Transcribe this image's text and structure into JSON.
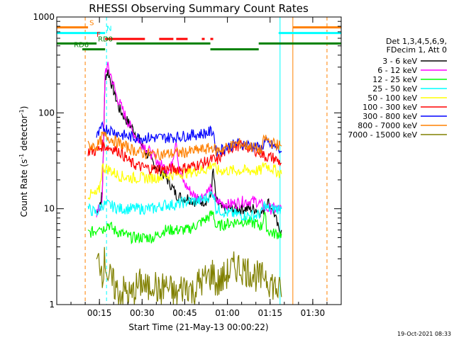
{
  "chart_data": {
    "type": "line",
    "title": "RHESSI Observing Summary Count Rates",
    "xlabel": "Start Time (21-May-13 00:00:22)",
    "ylabel": "Count Rate (s",
    "ylabel_sup": "-1",
    "ylabel_tail": " detector",
    "ylabel_sup2": "-1",
    "ylabel_close": ")",
    "yscale": "log",
    "xlim": [
      0,
      100
    ],
    "ylim": [
      1,
      1000
    ],
    "x_ticks": [
      {
        "t": 15,
        "label": "00:15"
      },
      {
        "t": 30,
        "label": "00:30"
      },
      {
        "t": 45,
        "label": "00:45"
      },
      {
        "t": 60,
        "label": "01:00"
      },
      {
        "t": 75,
        "label": "01:15"
      },
      {
        "t": 90,
        "label": "01:30"
      }
    ],
    "y_ticks": [
      {
        "v": 1,
        "label": "1"
      },
      {
        "v": 10,
        "label": "10"
      },
      {
        "v": 100,
        "label": "100"
      },
      {
        "v": 1000,
        "label": "1000"
      }
    ],
    "legend_header": [
      "Det 1,3,4,5,6,9,",
      "FDecim 1, Att 0"
    ],
    "legend_placement": "right",
    "timestamp": "19-Oct-2021 08:33",
    "series": [
      {
        "name": "3 - 6 keV",
        "color": "#000000",
        "points": [
          [
            14,
            9
          ],
          [
            15,
            11
          ],
          [
            16,
            14
          ],
          [
            17,
            240
          ],
          [
            18,
            270
          ],
          [
            20,
            170
          ],
          [
            22,
            110
          ],
          [
            25,
            80
          ],
          [
            28,
            60
          ],
          [
            31,
            40
          ],
          [
            34,
            30
          ],
          [
            36,
            26
          ],
          [
            38,
            22
          ],
          [
            40,
            18
          ],
          [
            42,
            14
          ],
          [
            44,
            13
          ],
          [
            46,
            13
          ],
          [
            48,
            12
          ],
          [
            50,
            12
          ],
          [
            52,
            12
          ],
          [
            54,
            13
          ],
          [
            55,
            25
          ],
          [
            56,
            12
          ],
          [
            58,
            10
          ],
          [
            62,
            10
          ],
          [
            66,
            10
          ],
          [
            70,
            10
          ],
          [
            72,
            9
          ],
          [
            73,
            10
          ],
          [
            74,
            12
          ],
          [
            76,
            10
          ],
          [
            78,
            6
          ],
          [
            79,
            6
          ]
        ]
      },
      {
        "name": "6 - 12 keV",
        "color": "#ff00ff",
        "points": [
          [
            14,
            9
          ],
          [
            15,
            10
          ],
          [
            16,
            12
          ],
          [
            17,
            280
          ],
          [
            18,
            300
          ],
          [
            19,
            250
          ],
          [
            21,
            150
          ],
          [
            23,
            110
          ],
          [
            26,
            70
          ],
          [
            28,
            55
          ],
          [
            31,
            45
          ],
          [
            34,
            35
          ],
          [
            37,
            28
          ],
          [
            40,
            25
          ],
          [
            42,
            55
          ],
          [
            43,
            25
          ],
          [
            45,
            18
          ],
          [
            48,
            14
          ],
          [
            50,
            13
          ],
          [
            52,
            14
          ],
          [
            54,
            16
          ],
          [
            56,
            12
          ],
          [
            60,
            11
          ],
          [
            66,
            12
          ],
          [
            70,
            12
          ],
          [
            72,
            11
          ],
          [
            74,
            10
          ],
          [
            76,
            10
          ],
          [
            79,
            10
          ]
        ]
      },
      {
        "name": "12 - 25 keV",
        "color": "#00ff00",
        "points": [
          [
            11,
            5.5
          ],
          [
            14,
            6
          ],
          [
            15,
            7
          ],
          [
            16,
            6
          ],
          [
            18,
            7
          ],
          [
            20,
            6
          ],
          [
            23,
            5.5
          ],
          [
            26,
            5
          ],
          [
            30,
            5
          ],
          [
            34,
            5
          ],
          [
            38,
            6
          ],
          [
            42,
            6
          ],
          [
            46,
            6
          ],
          [
            50,
            7
          ],
          [
            53,
            8
          ],
          [
            55,
            9
          ],
          [
            56,
            6.5
          ],
          [
            60,
            7
          ],
          [
            65,
            7.5
          ],
          [
            70,
            7
          ],
          [
            72,
            6.5
          ],
          [
            73,
            9
          ],
          [
            74,
            6
          ],
          [
            76,
            5.5
          ],
          [
            79,
            5.5
          ]
        ]
      },
      {
        "name": "25 - 50 keV",
        "color": "#00ffff",
        "points": [
          [
            11,
            10
          ],
          [
            14,
            9
          ],
          [
            15,
            10
          ],
          [
            16,
            11
          ],
          [
            18,
            11
          ],
          [
            22,
            10
          ],
          [
            26,
            10
          ],
          [
            30,
            10
          ],
          [
            34,
            10
          ],
          [
            38,
            11
          ],
          [
            42,
            11
          ],
          [
            46,
            12
          ],
          [
            50,
            12
          ],
          [
            53,
            13
          ],
          [
            55,
            15
          ],
          [
            56,
            10
          ],
          [
            60,
            9
          ],
          [
            66,
            8.5
          ],
          [
            70,
            8.5
          ],
          [
            72,
            9
          ],
          [
            73,
            11
          ],
          [
            74,
            10
          ],
          [
            76,
            10
          ],
          [
            79,
            10
          ]
        ]
      },
      {
        "name": "50 - 100 keV",
        "color": "#ffff00",
        "points": [
          [
            11,
            14
          ],
          [
            14,
            14
          ],
          [
            15,
            16
          ],
          [
            16,
            27
          ],
          [
            18,
            26
          ],
          [
            22,
            22
          ],
          [
            26,
            21
          ],
          [
            30,
            21
          ],
          [
            34,
            21
          ],
          [
            38,
            22
          ],
          [
            42,
            23
          ],
          [
            46,
            24
          ],
          [
            50,
            25
          ],
          [
            53,
            26
          ],
          [
            55,
            30
          ],
          [
            56,
            25
          ],
          [
            60,
            25
          ],
          [
            66,
            25
          ],
          [
            70,
            25
          ],
          [
            72,
            25
          ],
          [
            73,
            30
          ],
          [
            74,
            28
          ],
          [
            76,
            26
          ],
          [
            79,
            23
          ]
        ]
      },
      {
        "name": "100 - 300 keV",
        "color": "#ff0000",
        "points": [
          [
            11,
            40
          ],
          [
            14,
            40
          ],
          [
            15,
            42
          ],
          [
            16,
            46
          ],
          [
            18,
            44
          ],
          [
            22,
            40
          ],
          [
            26,
            30
          ],
          [
            30,
            27
          ],
          [
            34,
            26
          ],
          [
            38,
            26
          ],
          [
            42,
            26
          ],
          [
            46,
            27
          ],
          [
            50,
            29
          ],
          [
            53,
            31
          ],
          [
            55,
            33
          ],
          [
            56,
            31
          ],
          [
            60,
            42
          ],
          [
            64,
            46
          ],
          [
            68,
            43
          ],
          [
            72,
            38
          ],
          [
            73,
            35
          ],
          [
            74,
            35
          ],
          [
            76,
            34
          ],
          [
            79,
            30
          ]
        ]
      },
      {
        "name": "300 - 800 keV",
        "color": "#0000ff",
        "points": [
          [
            14,
            55
          ],
          [
            15,
            62
          ],
          [
            16,
            70
          ],
          [
            18,
            68
          ],
          [
            22,
            60
          ],
          [
            26,
            56
          ],
          [
            30,
            55
          ],
          [
            34,
            55
          ],
          [
            38,
            55
          ],
          [
            42,
            56
          ],
          [
            46,
            58
          ],
          [
            50,
            60
          ],
          [
            53,
            62
          ],
          [
            55,
            65
          ],
          [
            56,
            40
          ],
          [
            60,
            44
          ],
          [
            64,
            48
          ],
          [
            68,
            46
          ],
          [
            72,
            42
          ],
          [
            73,
            50
          ],
          [
            74,
            48
          ],
          [
            76,
            45
          ],
          [
            79,
            40
          ]
        ]
      },
      {
        "name": "800 - 7000 keV",
        "color": "#ff8000",
        "points": [
          [
            11,
            45
          ],
          [
            14,
            45
          ],
          [
            15,
            48
          ],
          [
            16,
            58
          ],
          [
            18,
            56
          ],
          [
            22,
            48
          ],
          [
            26,
            42
          ],
          [
            30,
            38
          ],
          [
            34,
            37
          ],
          [
            38,
            37
          ],
          [
            42,
            38
          ],
          [
            46,
            39
          ],
          [
            50,
            41
          ],
          [
            53,
            42
          ],
          [
            55,
            44
          ],
          [
            56,
            40
          ],
          [
            60,
            44
          ],
          [
            64,
            48
          ],
          [
            68,
            45
          ],
          [
            72,
            40
          ],
          [
            73,
            55
          ],
          [
            74,
            52
          ],
          [
            76,
            48
          ],
          [
            79,
            45
          ]
        ]
      },
      {
        "name": "7000 - 15000 keV",
        "color": "#808000",
        "points": [
          [
            14,
            2.5
          ],
          [
            15,
            3
          ],
          [
            16,
            2.2
          ],
          [
            17,
            3
          ],
          [
            18,
            2
          ],
          [
            20,
            1.6
          ],
          [
            22,
            1.3
          ],
          [
            24,
            1.4
          ],
          [
            26,
            1.2
          ],
          [
            28,
            1.5
          ],
          [
            30,
            1.7
          ],
          [
            32,
            1.4
          ],
          [
            34,
            1.8
          ],
          [
            36,
            1.3
          ],
          [
            38,
            1.6
          ],
          [
            40,
            1.4
          ],
          [
            42,
            1.2
          ],
          [
            44,
            1.5
          ],
          [
            46,
            1.6
          ],
          [
            48,
            1.3
          ],
          [
            50,
            1.7
          ],
          [
            52,
            1.8
          ],
          [
            54,
            2
          ],
          [
            55,
            2.2
          ],
          [
            56,
            1.6
          ],
          [
            58,
            1.8
          ],
          [
            60,
            2.1
          ],
          [
            62,
            2.4
          ],
          [
            64,
            2.5
          ],
          [
            66,
            2.3
          ],
          [
            68,
            2.2
          ],
          [
            70,
            2
          ],
          [
            72,
            1.8
          ],
          [
            73,
            2.2
          ],
          [
            74,
            1.9
          ],
          [
            76,
            1.6
          ],
          [
            78,
            1.4
          ],
          [
            79,
            1.2
          ]
        ]
      }
    ],
    "state_bars": [
      {
        "label": "S",
        "color": "#ff8000",
        "level": 780,
        "segments": [
          [
            0,
            11
          ],
          [
            83,
            100
          ]
        ]
      },
      {
        "label": "N",
        "color": "#00ffff",
        "level": 680,
        "segments": [
          [
            0,
            17
          ],
          [
            78,
            100
          ]
        ]
      },
      {
        "label": "F",
        "color": "#ff0000",
        "level": 590,
        "segments": [
          [
            17,
            31
          ],
          [
            36,
            41
          ],
          [
            42,
            46
          ],
          [
            51,
            52
          ],
          [
            54,
            55
          ]
        ]
      },
      {
        "label": "RD0",
        "color": "#008000",
        "level": 530,
        "segments": [
          [
            0,
            14
          ],
          [
            21,
            54
          ],
          [
            71,
            100
          ]
        ]
      },
      {
        "label": "RD6",
        "color": "#008000",
        "level": 460,
        "segments": [
          [
            9,
            17
          ],
          [
            54,
            71
          ]
        ]
      }
    ],
    "vlines": [
      {
        "t": 0,
        "color": "#00ffff",
        "dashed": false
      },
      {
        "t": 10,
        "color": "#ff8000",
        "dashed": true
      },
      {
        "t": 17.5,
        "color": "#00ffff",
        "dashed": true
      },
      {
        "t": 78.5,
        "color": "#00ffff",
        "dashed": false
      },
      {
        "t": 83,
        "color": "#ff8000",
        "dashed": false
      },
      {
        "t": 95,
        "color": "#ff8000",
        "dashed": true
      }
    ]
  }
}
